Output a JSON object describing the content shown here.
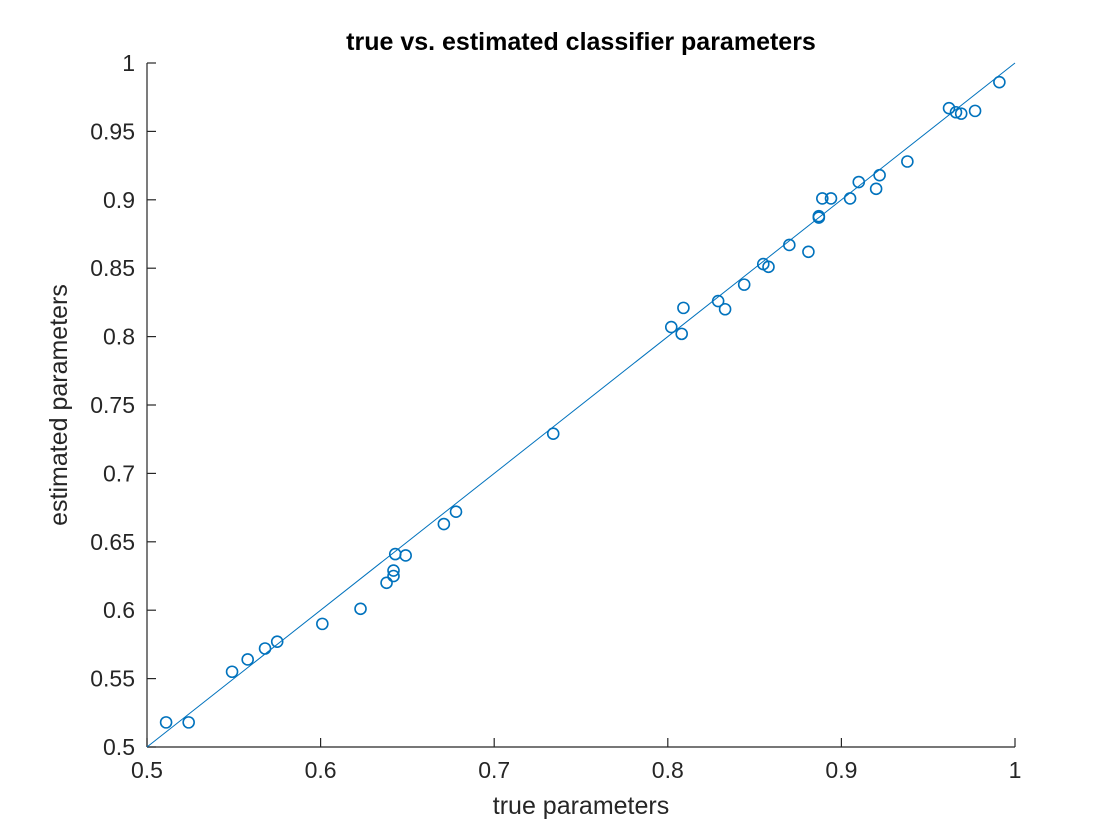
{
  "chart_data": {
    "type": "scatter",
    "title": "true vs. estimated classifier parameters",
    "xlabel": "true parameters",
    "ylabel": "estimated parameters",
    "xlim": [
      0.5,
      1
    ],
    "ylim": [
      0.5,
      1
    ],
    "xticks": [
      "0.5",
      "0.6",
      "0.7",
      "0.8",
      "0.9",
      "1"
    ],
    "yticks": [
      "0.5",
      "0.55",
      "0.6",
      "0.65",
      "0.7",
      "0.75",
      "0.8",
      "0.85",
      "0.9",
      "0.95",
      "1"
    ],
    "grid": false,
    "marker_color": "#0072bd",
    "reference_line": {
      "from": [
        0.5,
        0.5
      ],
      "to": [
        1,
        1
      ]
    },
    "points": [
      [
        0.511,
        0.518
      ],
      [
        0.524,
        0.518
      ],
      [
        0.549,
        0.555
      ],
      [
        0.558,
        0.564
      ],
      [
        0.568,
        0.572
      ],
      [
        0.575,
        0.577
      ],
      [
        0.601,
        0.59
      ],
      [
        0.623,
        0.601
      ],
      [
        0.638,
        0.62
      ],
      [
        0.642,
        0.625
      ],
      [
        0.642,
        0.629
      ],
      [
        0.643,
        0.641
      ],
      [
        0.649,
        0.64
      ],
      [
        0.671,
        0.663
      ],
      [
        0.678,
        0.672
      ],
      [
        0.734,
        0.729
      ],
      [
        0.802,
        0.807
      ],
      [
        0.808,
        0.802
      ],
      [
        0.809,
        0.821
      ],
      [
        0.829,
        0.826
      ],
      [
        0.833,
        0.82
      ],
      [
        0.844,
        0.838
      ],
      [
        0.855,
        0.853
      ],
      [
        0.858,
        0.851
      ],
      [
        0.87,
        0.867
      ],
      [
        0.881,
        0.862
      ],
      [
        0.887,
        0.888
      ],
      [
        0.887,
        0.887
      ],
      [
        0.889,
        0.901
      ],
      [
        0.894,
        0.901
      ],
      [
        0.905,
        0.901
      ],
      [
        0.91,
        0.913
      ],
      [
        0.92,
        0.908
      ],
      [
        0.922,
        0.918
      ],
      [
        0.938,
        0.928
      ],
      [
        0.962,
        0.967
      ],
      [
        0.966,
        0.964
      ],
      [
        0.969,
        0.963
      ],
      [
        0.977,
        0.965
      ],
      [
        0.991,
        0.986
      ]
    ]
  }
}
